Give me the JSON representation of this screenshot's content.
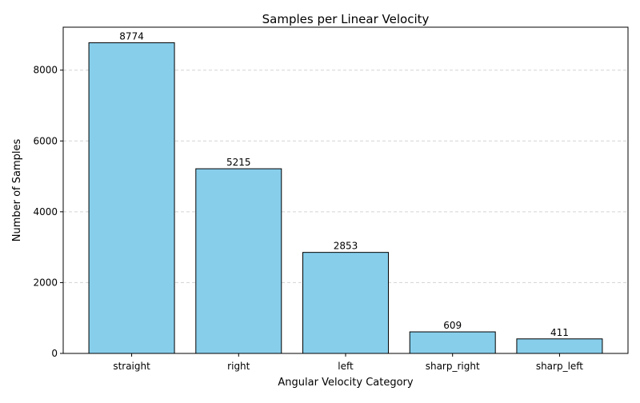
{
  "chart_data": {
    "type": "bar",
    "title": "Samples per Linear Velocity",
    "xlabel": "Angular Velocity Category",
    "ylabel": "Number of Samples",
    "categories": [
      "straight",
      "right",
      "left",
      "sharp_right",
      "sharp_left"
    ],
    "values": [
      8774,
      5215,
      2853,
      609,
      411
    ],
    "data_labels": [
      "8774",
      "5215",
      "2853",
      "609",
      "411"
    ],
    "yticks": [
      0,
      2000,
      4000,
      6000,
      8000
    ],
    "ylim": [
      0,
      9213
    ],
    "grid": {
      "axis": "y",
      "style": "dashed"
    },
    "bar_color": "#87CEEB",
    "bar_edge_color": "#000000",
    "grid_color": "#d3d3d3"
  }
}
